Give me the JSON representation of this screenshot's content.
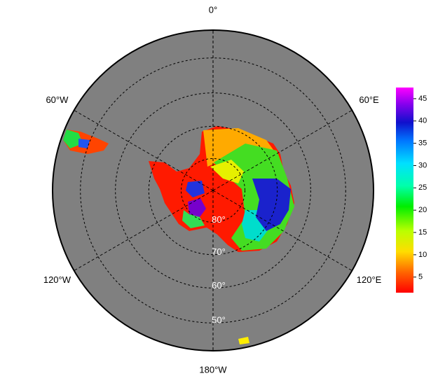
{
  "map": {
    "meridians": [
      {
        "value": 0,
        "label": "0°"
      },
      {
        "value": 60,
        "label": "60°E"
      },
      {
        "value": 120,
        "label": "120°E"
      },
      {
        "value": 180,
        "label": "180°W"
      },
      {
        "value": -120,
        "label": "120°W"
      },
      {
        "value": -60,
        "label": "60°W"
      }
    ],
    "parallels": [
      {
        "value": 80,
        "label": "80°"
      },
      {
        "value": 70,
        "label": "70°"
      },
      {
        "value": 60,
        "label": "60°"
      },
      {
        "value": 50,
        "label": "50°"
      }
    ]
  },
  "colorbar": {
    "lim": [
      1.5,
      47.5
    ],
    "ticks": [
      5,
      10,
      15,
      20,
      25,
      30,
      35,
      40,
      45
    ]
  }
}
